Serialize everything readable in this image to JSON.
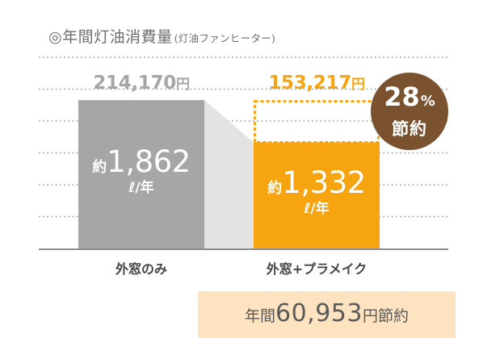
{
  "title": {
    "main": "◎年間灯油消費量",
    "sub": "(灯油ファンヒーター)"
  },
  "colors": {
    "bar_before": "#a6a6a8",
    "bar_after": "#f6a40f",
    "connector": "#e3e3e4",
    "badge": "#7a5230",
    "savings_box": "#fde3bf"
  },
  "chart_data": {
    "type": "bar",
    "categories": [
      "外窓のみ",
      "外窓+プラメイク"
    ],
    "series": [
      {
        "values": [
          1862,
          1332
        ],
        "value_prefix": "約",
        "unit": "ℓ/年",
        "cost_labels": [
          "214,170",
          "153,217"
        ],
        "cost_unit": "円"
      }
    ],
    "title": "◎年間灯油消費量(灯油ファンヒーター)",
    "xlabel": "",
    "ylabel": "",
    "ylim": [
      0,
      2400
    ],
    "grid": true,
    "reduction_badge": {
      "value": "28",
      "unit": "%",
      "label": "節約"
    },
    "annotation": {
      "prefix": "年間",
      "value": "60,953",
      "suffix": "円節約"
    }
  }
}
